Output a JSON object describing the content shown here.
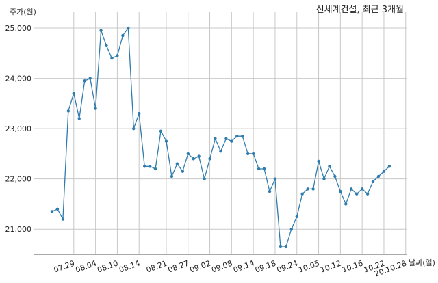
{
  "chart_data": {
    "type": "line",
    "title": "신세계건설, 최근 3개월",
    "ylabel": "주가(원)",
    "xlabel": "날짜(일)",
    "ylim": [
      20500,
      25150
    ],
    "yticks": [
      21000,
      22000,
      23000,
      24000,
      25000
    ],
    "ytick_labels": [
      "21,000",
      "22,000",
      "23,000",
      "24,000",
      "25,000"
    ],
    "xtick_labels": [
      "07.29",
      "08.04",
      "08.10",
      "08.14",
      "08.21",
      "08.27",
      "09.02",
      "09.08",
      "09.14",
      "09.18",
      "09.24",
      "10.05",
      "10.12",
      "10.16",
      "10.22",
      "20.10.28"
    ],
    "xtick_index": [
      4,
      8,
      12,
      16,
      21,
      25,
      29,
      33,
      37,
      41,
      45,
      49,
      53,
      57,
      61,
      65
    ],
    "grid": true,
    "series": [
      {
        "color": "#2f7cad",
        "values": [
          21350,
          21400,
          21200,
          23350,
          23700,
          23200,
          23950,
          24000,
          23400,
          24950,
          24650,
          24400,
          24450,
          24850,
          25000,
          23000,
          23300,
          22250,
          22250,
          22200,
          22950,
          22750,
          22050,
          22300,
          22150,
          22500,
          22400,
          22450,
          22000,
          22400,
          22800,
          22550,
          22800,
          22750,
          22850,
          22850,
          22500,
          22500,
          22200,
          22200,
          21750,
          22000,
          20650,
          20650,
          21000,
          21250,
          21700,
          21800,
          21800,
          22350,
          22000,
          22250,
          22050,
          21750,
          21500,
          21800,
          21700,
          21800,
          21700,
          21950,
          22050,
          22150,
          22250
        ]
      }
    ]
  }
}
